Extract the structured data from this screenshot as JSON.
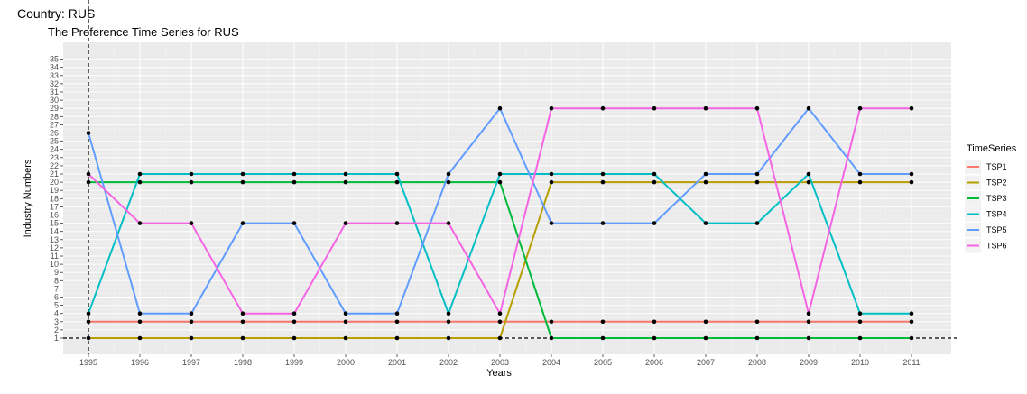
{
  "header": {
    "country_label": "Country: RUS"
  },
  "chart_data": {
    "type": "line",
    "title": "The Preference Time Series for  RUS",
    "xlabel": "Years",
    "ylabel": "Industry Numbers",
    "x": [
      1995,
      1996,
      1997,
      1998,
      1999,
      2000,
      2001,
      2002,
      2003,
      2004,
      2005,
      2006,
      2007,
      2008,
      2009,
      2010,
      2011
    ],
    "ylim": [
      1,
      35
    ],
    "y_ticks": [
      1,
      2,
      3,
      4,
      5,
      6,
      7,
      8,
      9,
      10,
      11,
      12,
      13,
      14,
      15,
      16,
      17,
      18,
      19,
      20,
      21,
      22,
      23,
      24,
      25,
      26,
      27,
      28,
      29,
      30,
      31,
      32,
      33,
      34,
      35
    ],
    "grid": true,
    "legend_title": "TimeSeries",
    "legend_position": "right",
    "reference_lines": {
      "vertical_x": 1995,
      "horizontal_y": 1
    },
    "series": [
      {
        "name": "TSP1",
        "color": "#F8766D",
        "values": [
          3,
          3,
          3,
          3,
          3,
          3,
          3,
          3,
          3,
          3,
          3,
          3,
          3,
          3,
          3,
          3,
          3
        ]
      },
      {
        "name": "TSP2",
        "color": "#B79F00",
        "values": [
          1,
          1,
          1,
          1,
          1,
          1,
          1,
          1,
          1,
          20,
          20,
          20,
          20,
          20,
          20,
          20,
          20
        ]
      },
      {
        "name": "TSP3",
        "color": "#00BA38",
        "values": [
          20,
          20,
          20,
          20,
          20,
          20,
          20,
          20,
          20,
          1,
          1,
          1,
          1,
          1,
          1,
          1,
          1
        ]
      },
      {
        "name": "TSP4",
        "color": "#00BFC4",
        "values": [
          4,
          21,
          21,
          21,
          21,
          21,
          21,
          4,
          21,
          21,
          21,
          21,
          15,
          15,
          21,
          4,
          4
        ]
      },
      {
        "name": "TSP5",
        "color": "#619CFF",
        "values": [
          26,
          4,
          4,
          15,
          15,
          4,
          4,
          21,
          29,
          15,
          15,
          15,
          21,
          21,
          29,
          21,
          21
        ]
      },
      {
        "name": "TSP6",
        "color": "#F564E3",
        "values": [
          21,
          15,
          15,
          4,
          4,
          15,
          15,
          15,
          4,
          29,
          29,
          29,
          29,
          29,
          4,
          29,
          29
        ]
      }
    ]
  }
}
